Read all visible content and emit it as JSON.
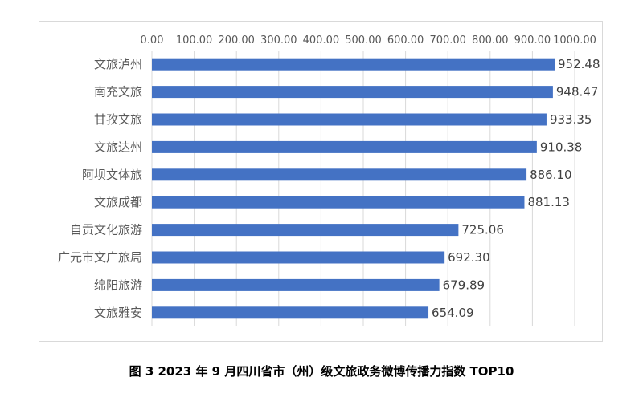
{
  "caption": "图 3   2023 年 9 月四川省市（州）级文旅政务微博传播力指数 TOP10",
  "chart_data": {
    "type": "bar",
    "orientation": "horizontal",
    "categories": [
      "文旅泸州",
      "南充文旅",
      "甘孜文旅",
      "文旅达州",
      "阿坝文体旅",
      "文旅成都",
      "自贡文化旅游",
      "广元市文广旅局",
      "绵阳旅游",
      "文旅雅安"
    ],
    "values": [
      952.48,
      948.47,
      933.35,
      910.38,
      886.1,
      881.13,
      725.06,
      692.3,
      679.89,
      654.09
    ],
    "value_labels": [
      "952.48",
      "948.47",
      "933.35",
      "910.38",
      "886.10",
      "881.13",
      "725.06",
      "692.30",
      "679.89",
      "654.09"
    ],
    "ticks": [
      "0.00",
      "100.00",
      "200.00",
      "300.00",
      "400.00",
      "500.00",
      "600.00",
      "700.00",
      "800.00",
      "900.00",
      "1000.00"
    ],
    "xlim": [
      0,
      1000
    ],
    "axis_position": "top",
    "grid": true,
    "bar_color": "#4472C4",
    "grid_color": "#d9d9d9"
  }
}
